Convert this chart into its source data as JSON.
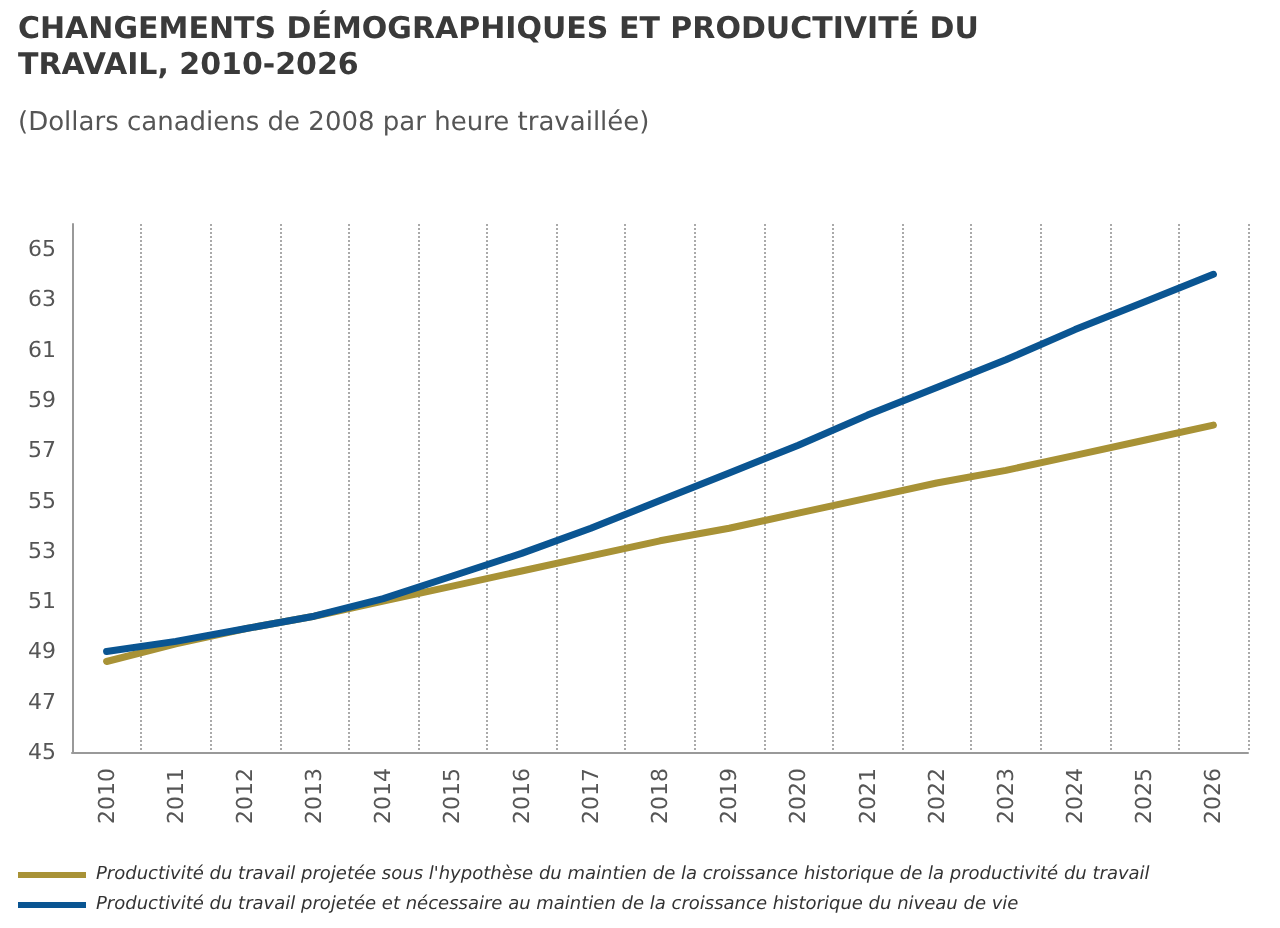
{
  "chart_data": {
    "type": "line",
    "title": "CHANGEMENTS DÉMOGRAPHIQUES ET PRODUCTIVITÉ DU TRAVAIL, 2010-2026",
    "subtitle": "(Dollars canadiens de 2008 par heure travaillée)",
    "categories": [
      "2010",
      "2011",
      "2012",
      "2013",
      "2014",
      "2015",
      "2016",
      "2017",
      "2018",
      "2019",
      "2020",
      "2021",
      "2022",
      "2023",
      "2024",
      "2025",
      "2026"
    ],
    "series": [
      {
        "name": "Productivité du travail projetée sous l'hypothèse du maintien de la croissance historique de la productivité du travail",
        "color": "#a89236",
        "values": [
          48.6,
          49.3,
          49.9,
          50.4,
          51.0,
          51.6,
          52.2,
          52.8,
          53.4,
          53.9,
          54.5,
          55.1,
          55.7,
          56.2,
          56.8,
          57.4,
          58.0
        ]
      },
      {
        "name": "Productivité du travail projetée et nécessaire au maintien de la croissance historique du niveau de vie",
        "color": "#0a5592",
        "values": [
          49.0,
          49.4,
          49.9,
          50.4,
          51.1,
          52.0,
          52.9,
          53.9,
          55.0,
          56.1,
          57.2,
          58.4,
          59.5,
          60.6,
          61.8,
          62.9,
          64.0
        ]
      }
    ],
    "ylim": [
      45,
      66
    ],
    "yticks": [
      45,
      47,
      49,
      51,
      53,
      55,
      57,
      59,
      61,
      63,
      65
    ],
    "grid": "x",
    "legend": "bottom",
    "marker": "none",
    "line_style": "solid"
  }
}
